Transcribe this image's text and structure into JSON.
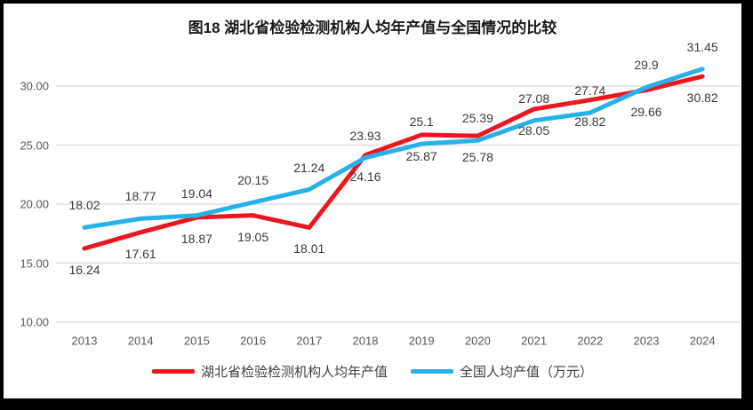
{
  "chart_data": {
    "type": "line",
    "title": "图18  湖北省检验检测机构人均年产值与全国情况的比较",
    "categories": [
      "2013",
      "2014",
      "2015",
      "2016",
      "2017",
      "2018",
      "2019",
      "2020",
      "2021",
      "2022",
      "2023",
      "2024"
    ],
    "series": [
      {
        "name": "湖北省检验检测机构人均年产值",
        "color": "#ec1621",
        "label_position": "below",
        "values": [
          16.24,
          17.61,
          18.87,
          19.05,
          18.01,
          24.16,
          25.87,
          25.78,
          28.05,
          28.82,
          29.66,
          30.82
        ],
        "labels": [
          "16.24",
          "17.61",
          "18.87",
          "19.05",
          "18.01",
          "24.16",
          "25.87",
          "25.78",
          "28.05",
          "28.82",
          "29.66",
          "30.82"
        ]
      },
      {
        "name": "全国人均产值（万元）",
        "color": "#27b1e9",
        "label_position": "above",
        "values": [
          18.02,
          18.77,
          19.04,
          20.15,
          21.24,
          23.93,
          25.1,
          25.39,
          27.08,
          27.74,
          29.9,
          31.45
        ],
        "labels": [
          "18.02",
          "18.77",
          "19.04",
          "20.15",
          "21.24",
          "23.93",
          "25.1",
          "25.39",
          "27.08",
          "27.74",
          "29.9",
          "31.45"
        ]
      }
    ],
    "y_axis": {
      "min": 10,
      "max": 32.5,
      "ticks": [
        {
          "value": 10,
          "label": "10.00"
        },
        {
          "value": 15,
          "label": "15.00"
        },
        {
          "value": 20,
          "label": "20.00"
        },
        {
          "value": 25,
          "label": "25.00"
        },
        {
          "value": 30,
          "label": "30.00"
        }
      ]
    },
    "grid": true,
    "legend_position": "bottom",
    "colors": {
      "gridline": "#dedede",
      "axis_text": "#595959",
      "data_label_text": "#3a3a3a",
      "title_text": "#1a1a1a",
      "frame_border": "#000000",
      "background": "#ffffff"
    }
  }
}
